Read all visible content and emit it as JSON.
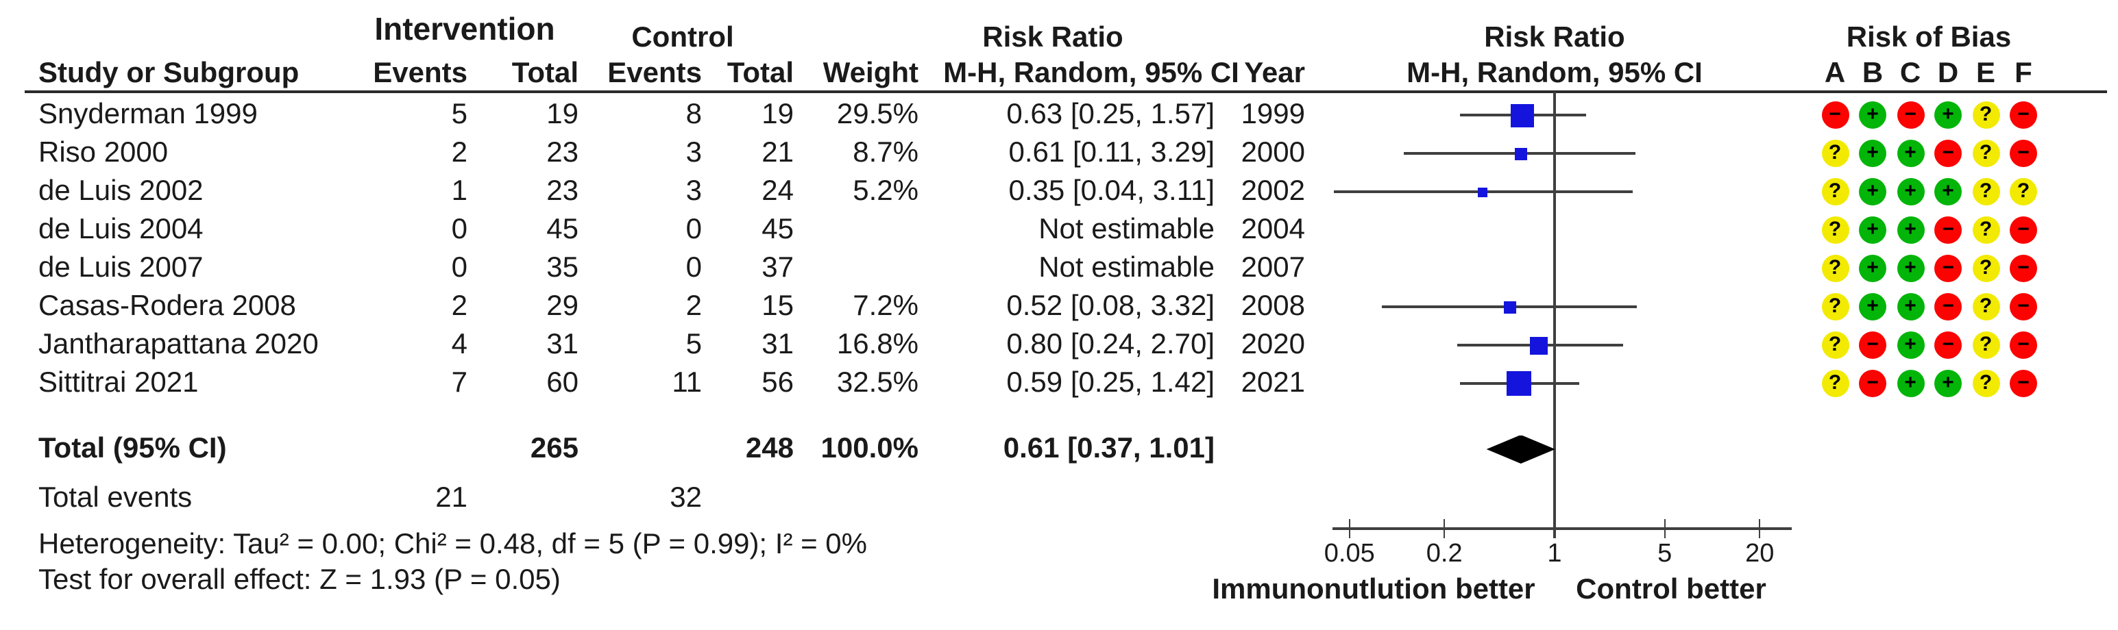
{
  "header": {
    "group_intervention": "Intervention",
    "group_control": "Control",
    "risk_ratio": "Risk Ratio",
    "study": "Study or Subgroup",
    "events": "Events",
    "total": "Total",
    "weight": "Weight",
    "mh_ci": "M-H, Random, 95% CI",
    "year": "Year",
    "plot_title": "Risk Ratio",
    "plot_subtitle": "M-H, Random, 95% CI",
    "rob_title": "Risk of Bias",
    "rob_domains": [
      "A",
      "B",
      "C",
      "D",
      "E",
      "F"
    ]
  },
  "studies": [
    {
      "name": "Snyderman 1999",
      "int_events": "5",
      "int_total": "19",
      "ctl_events": "8",
      "ctl_total": "19",
      "weight": "29.5%",
      "estimate": "0.63 [0.25, 1.57]",
      "year": "1999",
      "rr": 0.63,
      "lo": 0.25,
      "hi": 1.57,
      "w": 29.5,
      "rob": [
        "-",
        "+",
        "-",
        "+",
        "?",
        "-"
      ]
    },
    {
      "name": "Riso 2000",
      "int_events": "2",
      "int_total": "23",
      "ctl_events": "3",
      "ctl_total": "21",
      "weight": "8.7%",
      "estimate": "0.61 [0.11, 3.29]",
      "year": "2000",
      "rr": 0.61,
      "lo": 0.11,
      "hi": 3.29,
      "w": 8.7,
      "rob": [
        "?",
        "+",
        "+",
        "-",
        "?",
        "-"
      ]
    },
    {
      "name": "de Luis 2002",
      "int_events": "1",
      "int_total": "23",
      "ctl_events": "3",
      "ctl_total": "24",
      "weight": "5.2%",
      "estimate": "0.35 [0.04, 3.11]",
      "year": "2002",
      "rr": 0.35,
      "lo": 0.04,
      "hi": 3.11,
      "w": 5.2,
      "rob": [
        "?",
        "+",
        "+",
        "+",
        "?",
        "?"
      ]
    },
    {
      "name": "de Luis 2004",
      "int_events": "0",
      "int_total": "45",
      "ctl_events": "0",
      "ctl_total": "45",
      "weight": "",
      "estimate": "Not estimable",
      "year": "2004",
      "rr": null,
      "lo": null,
      "hi": null,
      "w": null,
      "rob": [
        "?",
        "+",
        "+",
        "-",
        "?",
        "-"
      ]
    },
    {
      "name": "de Luis 2007",
      "int_events": "0",
      "int_total": "35",
      "ctl_events": "0",
      "ctl_total": "37",
      "weight": "",
      "estimate": "Not estimable",
      "year": "2007",
      "rr": null,
      "lo": null,
      "hi": null,
      "w": null,
      "rob": [
        "?",
        "+",
        "+",
        "-",
        "?",
        "-"
      ]
    },
    {
      "name": "Casas-Rodera 2008",
      "int_events": "2",
      "int_total": "29",
      "ctl_events": "2",
      "ctl_total": "15",
      "weight": "7.2%",
      "estimate": "0.52 [0.08, 3.32]",
      "year": "2008",
      "rr": 0.52,
      "lo": 0.08,
      "hi": 3.32,
      "w": 7.2,
      "rob": [
        "?",
        "+",
        "+",
        "-",
        "?",
        "-"
      ]
    },
    {
      "name": "Jantharapattana 2020",
      "int_events": "4",
      "int_total": "31",
      "ctl_events": "5",
      "ctl_total": "31",
      "weight": "16.8%",
      "estimate": "0.80 [0.24, 2.70]",
      "year": "2020",
      "rr": 0.8,
      "lo": 0.24,
      "hi": 2.7,
      "w": 16.8,
      "rob": [
        "?",
        "-",
        "+",
        "-",
        "?",
        "-"
      ]
    },
    {
      "name": "Sittitrai 2021",
      "int_events": "7",
      "int_total": "60",
      "ctl_events": "11",
      "ctl_total": "56",
      "weight": "32.5%",
      "estimate": "0.59 [0.25, 1.42]",
      "year": "2021",
      "rr": 0.59,
      "lo": 0.25,
      "hi": 1.42,
      "w": 32.5,
      "rob": [
        "?",
        "-",
        "+",
        "+",
        "?",
        "-"
      ]
    }
  ],
  "totals": {
    "label": "Total (95% CI)",
    "int_total": "265",
    "ctl_total": "248",
    "weight": "100.0%",
    "estimate": "0.61 [0.37, 1.01]",
    "events_label": "Total events",
    "int_events": "21",
    "ctl_events": "32"
  },
  "footnotes": {
    "heterogeneity": "Heterogeneity: Tau² = 0.00; Chi² = 0.48, df = 5 (P = 0.99); I² = 0%",
    "overall_effect": "Test for overall effect: Z = 1.93 (P = 0.05)"
  },
  "axis": {
    "tick_labels": [
      "0.05",
      "0.2",
      "1",
      "5",
      "20"
    ],
    "left_label": "Immunonutlution better",
    "right_label": "Control better"
  },
  "colors": {
    "square_blue": "#1414dd",
    "diamond_black": "#000000",
    "line_gray": "#3f3f3f",
    "text": "#1a1a1a",
    "rob_red": "#fb0300",
    "rob_green": "#02b508",
    "rob_yellow": "#f2ea00"
  },
  "chart_data": {
    "type": "scatter",
    "subtype": "forest-plot",
    "title": "Risk Ratio",
    "effect_measure": "M-H, Random, 95% CI",
    "x_scale": "log",
    "x_ticks": [
      0.05,
      0.2,
      1,
      5,
      20
    ],
    "no_effect_line": 1,
    "x_axis_left_label": "Immunonutlution better",
    "x_axis_right_label": "Control better",
    "studies": [
      {
        "name": "Snyderman 1999",
        "year": 1999,
        "rr": 0.63,
        "ci_low": 0.25,
        "ci_high": 1.57,
        "weight_pct": 29.5
      },
      {
        "name": "Riso 2000",
        "year": 2000,
        "rr": 0.61,
        "ci_low": 0.11,
        "ci_high": 3.29,
        "weight_pct": 8.7
      },
      {
        "name": "de Luis 2002",
        "year": 2002,
        "rr": 0.35,
        "ci_low": 0.04,
        "ci_high": 3.11,
        "weight_pct": 5.2
      },
      {
        "name": "de Luis 2004",
        "year": 2004,
        "rr": null,
        "ci_low": null,
        "ci_high": null,
        "weight_pct": null,
        "note": "Not estimable"
      },
      {
        "name": "de Luis 2007",
        "year": 2007,
        "rr": null,
        "ci_low": null,
        "ci_high": null,
        "weight_pct": null,
        "note": "Not estimable"
      },
      {
        "name": "Casas-Rodera 2008",
        "year": 2008,
        "rr": 0.52,
        "ci_low": 0.08,
        "ci_high": 3.32,
        "weight_pct": 7.2
      },
      {
        "name": "Jantharapattana 2020",
        "year": 2020,
        "rr": 0.8,
        "ci_low": 0.24,
        "ci_high": 2.7,
        "weight_pct": 16.8
      },
      {
        "name": "Sittitrai 2021",
        "year": 2021,
        "rr": 0.59,
        "ci_low": 0.25,
        "ci_high": 1.42,
        "weight_pct": 32.5
      }
    ],
    "pooled": {
      "label": "Total (95% CI)",
      "rr": 0.61,
      "ci_low": 0.37,
      "ci_high": 1.01,
      "weight_pct": 100.0
    },
    "heterogeneity": {
      "tau2": 0.0,
      "chi2": 0.48,
      "df": 5,
      "p": 0.99,
      "i2_pct": 0
    },
    "overall_effect": {
      "z": 1.93,
      "p": 0.05
    }
  }
}
